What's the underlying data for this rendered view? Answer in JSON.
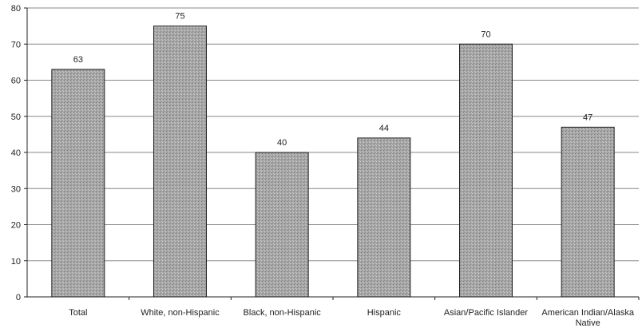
{
  "chart_data": {
    "type": "bar",
    "categories": [
      [
        "Total"
      ],
      [
        "White, non-Hispanic"
      ],
      [
        "Black, non-Hispanic"
      ],
      [
        "Hispanic"
      ],
      [
        "Asian/Pacific Islander"
      ],
      [
        "American Indian/Alaska",
        "Native"
      ]
    ],
    "values": [
      63,
      75,
      40,
      44,
      70,
      47
    ],
    "data_labels": [
      "63",
      "75",
      "40",
      "44",
      "70",
      "47"
    ],
    "y_ticks": [
      0,
      10,
      20,
      30,
      40,
      50,
      60,
      70,
      80
    ],
    "ylim": [
      0,
      80
    ],
    "grid": true,
    "legend": "none",
    "colors": {
      "bar_fill": "#a9a9a9",
      "bar_stroke": "#222222",
      "grid": "#888888",
      "axis": "#222222"
    }
  }
}
